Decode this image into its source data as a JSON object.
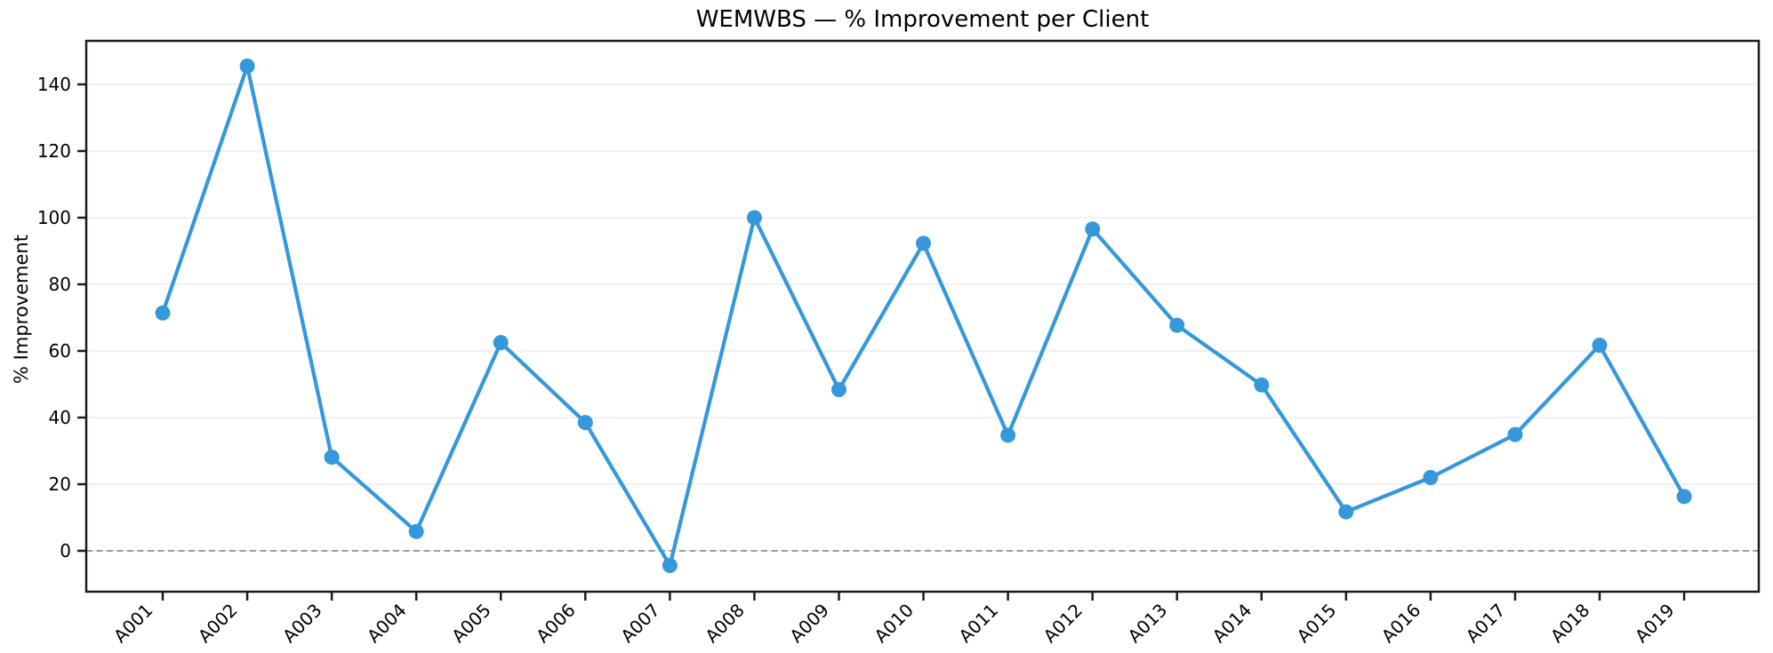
{
  "chart_data": {
    "type": "line",
    "title": "WEMWBS — % Improvement per Client",
    "ylabel": "% Improvement",
    "xlabel": "",
    "categories": [
      "A001",
      "A002",
      "A003",
      "A004",
      "A005",
      "A006",
      "A007",
      "A008",
      "A009",
      "A010",
      "A011",
      "A012",
      "A013",
      "A014",
      "A015",
      "A016",
      "A017",
      "A018",
      "A019"
    ],
    "series": [
      {
        "name": "% Improvement",
        "values": [
          71.4,
          145.5,
          28.1,
          5.8,
          62.5,
          38.5,
          -4.4,
          100.0,
          48.4,
          92.3,
          34.7,
          96.6,
          67.7,
          49.8,
          11.7,
          22.0,
          34.9,
          61.7,
          16.3
        ]
      }
    ],
    "yticks": [
      0,
      20,
      40,
      60,
      80,
      100,
      120,
      140
    ],
    "ylim": [
      -12.3,
      153.1
    ],
    "grid": "horizontal",
    "legend": "none",
    "zero_line": {
      "value": 0,
      "style": "dashed"
    },
    "marker": "circle",
    "colors": {
      "line": "#3498db",
      "grid": "#e8e8e8",
      "spine": "#1c1c1c",
      "zero": "#7f7f7f",
      "text": "#000000"
    }
  }
}
